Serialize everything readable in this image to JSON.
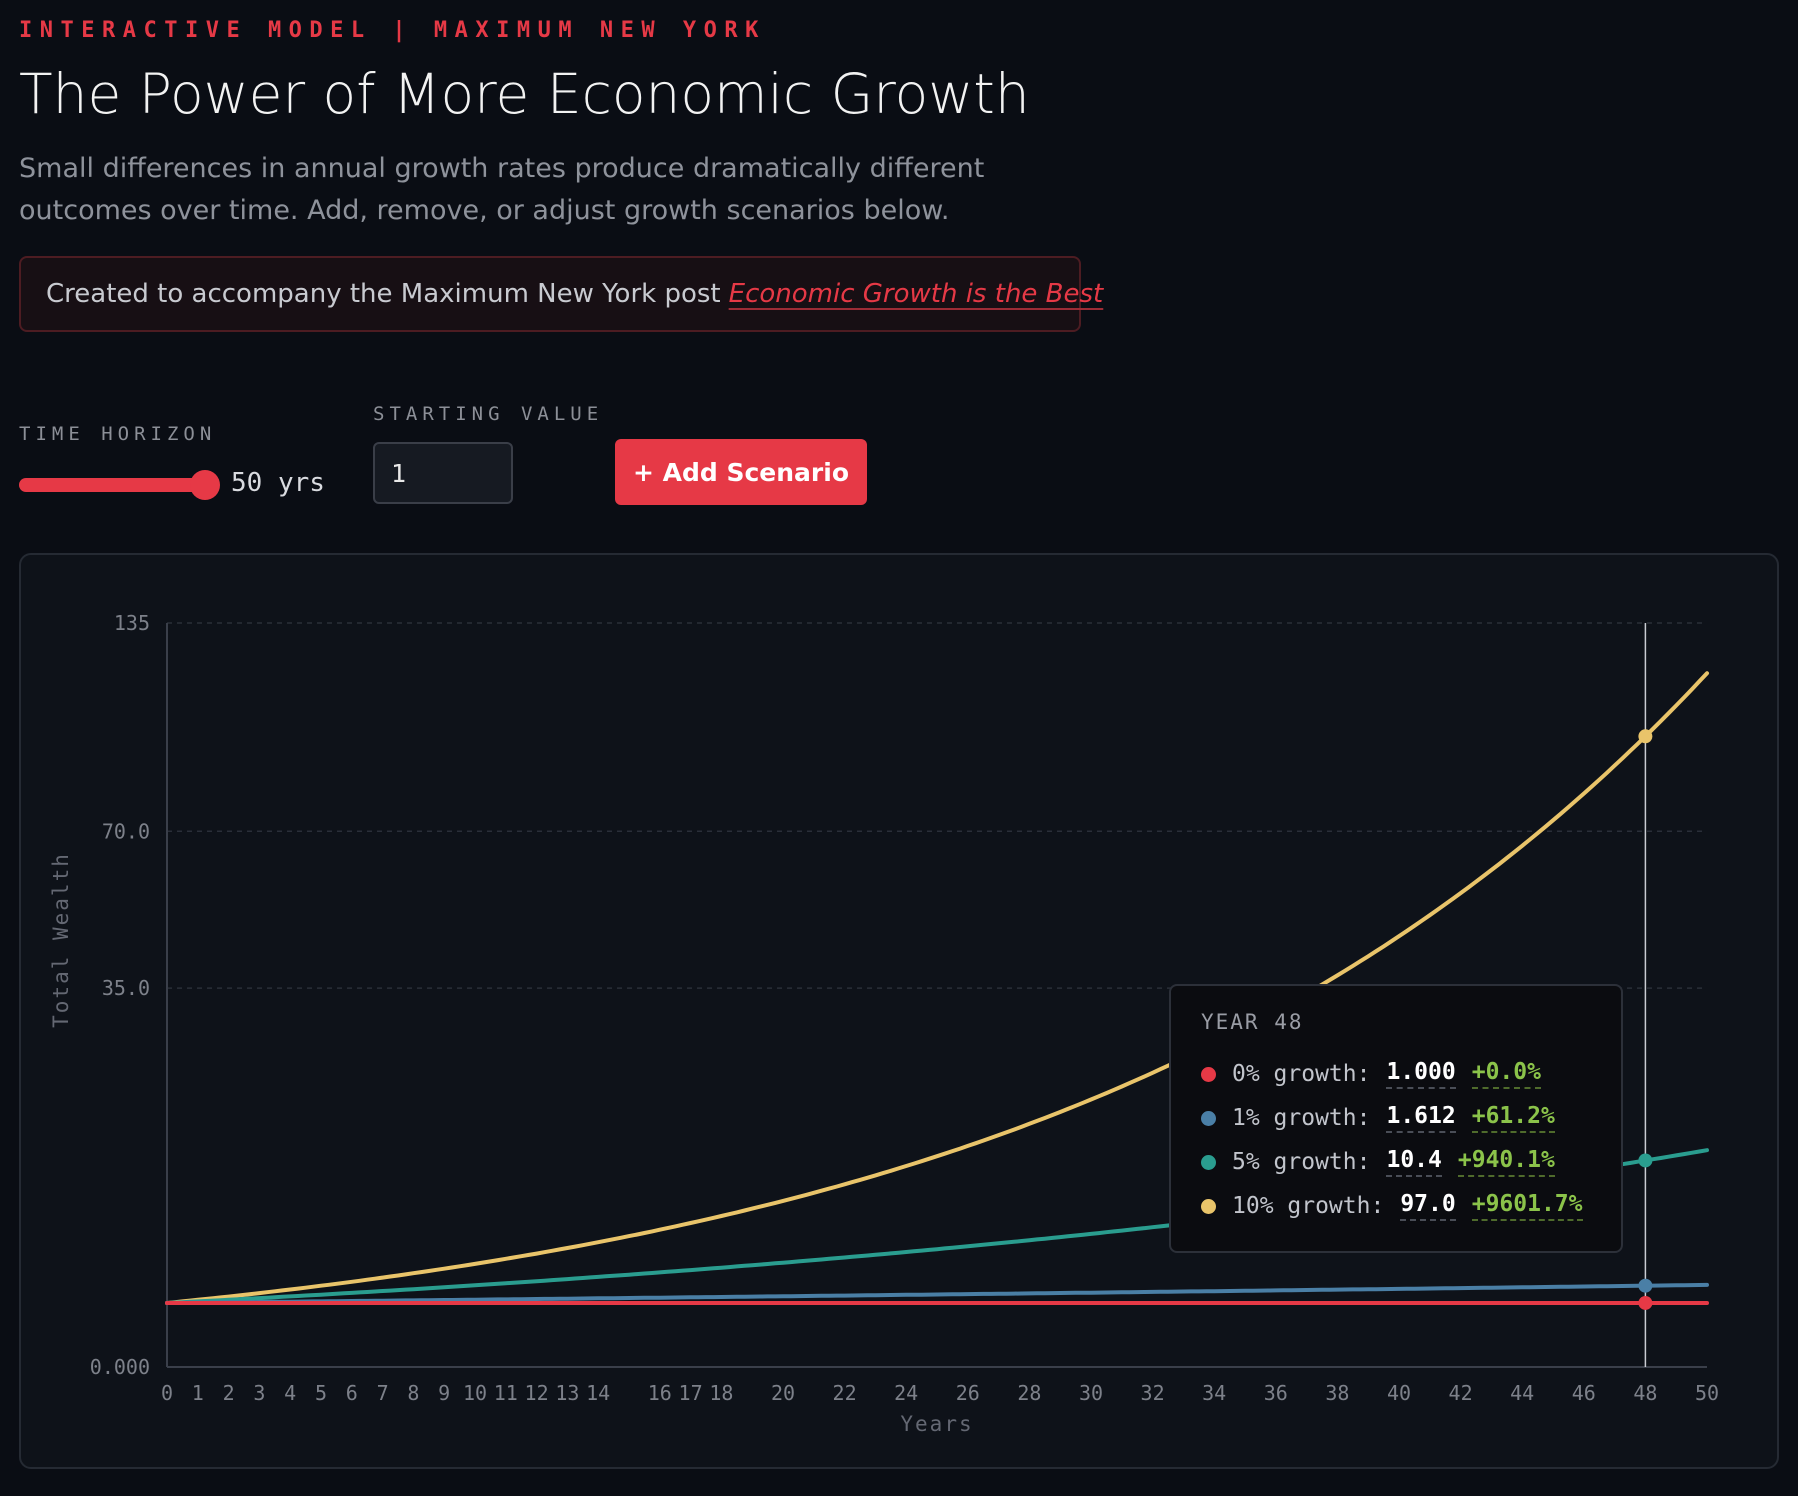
{
  "header": {
    "eyebrow": "INTERACTIVE MODEL | MAXIMUM NEW YORK",
    "title": "The Power of More Economic Growth",
    "subtitle": "Small differences in annual growth rates produce dramatically different outcomes over time. Add, remove, or adjust growth scenarios below."
  },
  "note": {
    "text": "Created to accompany the Maximum New York post",
    "link_text": "Economic Growth is the Best"
  },
  "controls": {
    "time_horizon_label": "TIME HORIZON",
    "time_horizon_value": "50 yrs",
    "time_horizon_years": 50,
    "time_horizon_max": 50,
    "starting_value_label": "STARTING VALUE",
    "starting_value": "1",
    "add_button_label": "+ Add Scenario"
  },
  "colors": {
    "accent": "#e63946",
    "positive": "#8bc34a"
  },
  "tooltip": {
    "title": "YEAR 48",
    "rows": [
      {
        "name": "0% growth:",
        "value": "1.000",
        "change": "+0.0%",
        "color": "#e63946"
      },
      {
        "name": "1% growth:",
        "value": "1.612",
        "change": "+61.2%",
        "color": "#4a7fa6"
      },
      {
        "name": "5% growth:",
        "value": "10.4",
        "change": "+940.1%",
        "color": "#2a9d8f"
      },
      {
        "name": "10% growth:",
        "value": "97.0",
        "change": "+9601.7%",
        "color": "#e9c46a"
      }
    ]
  },
  "chart_data": {
    "type": "line",
    "xlabel": "Years",
    "ylabel": "Total Wealth",
    "x_range": [
      0,
      50
    ],
    "y_range": [
      0,
      135
    ],
    "y_scale": "sqrt",
    "y_ticks": [
      {
        "value": 0,
        "label": "0.000"
      },
      {
        "value": 35,
        "label": "35.0"
      },
      {
        "value": 70,
        "label": "70.0"
      },
      {
        "value": 135,
        "label": "135"
      }
    ],
    "x_ticks": [
      0,
      1,
      2,
      3,
      4,
      5,
      6,
      7,
      8,
      9,
      10,
      11,
      12,
      13,
      14,
      16,
      17,
      18,
      20,
      22,
      24,
      26,
      28,
      30,
      32,
      34,
      36,
      38,
      40,
      42,
      44,
      46,
      48,
      50
    ],
    "grid": "dashed horizontal",
    "hover_year": 48,
    "starting_value": 1,
    "series": [
      {
        "name": "0% growth",
        "rate": 0,
        "color": "#e63946"
      },
      {
        "name": "1% growth",
        "rate": 0.01,
        "color": "#4a7fa6"
      },
      {
        "name": "5% growth",
        "rate": 0.05,
        "color": "#2a9d8f"
      },
      {
        "name": "10% growth",
        "rate": 0.1,
        "color": "#e9c46a"
      }
    ]
  }
}
